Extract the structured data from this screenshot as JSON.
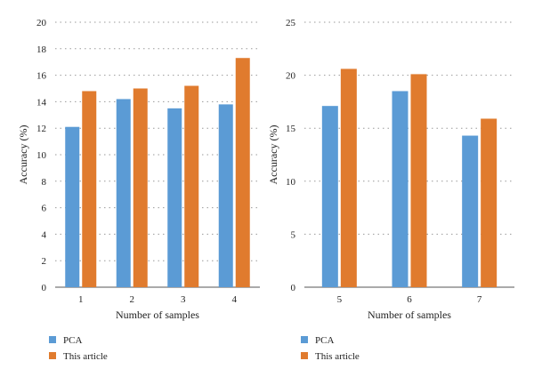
{
  "charts": [
    {
      "type": "bar",
      "categories": [
        "1",
        "2",
        "3",
        "4"
      ],
      "series": [
        {
          "name": "PCA",
          "values": [
            12.1,
            14.2,
            13.5,
            13.8
          ]
        },
        {
          "name": "This article",
          "values": [
            14.8,
            15.0,
            15.2,
            17.3
          ]
        }
      ],
      "ylim": [
        0,
        20
      ],
      "yticks": [
        0,
        2,
        4,
        6,
        8,
        10,
        12,
        14,
        16,
        18,
        20
      ],
      "ytick_labels": [
        "0",
        "2",
        "4",
        "6",
        "8",
        "10",
        "12",
        "14",
        "16",
        "18",
        "20"
      ],
      "ylabel": "Accuracy (%)",
      "xlabel": "Number of samples",
      "grid": "horizontal dotted",
      "legend": "bottom-left",
      "colors": [
        "#5b9bd5",
        "#e07b2e"
      ]
    },
    {
      "type": "bar",
      "categories": [
        "5",
        "6",
        "7"
      ],
      "series": [
        {
          "name": "PCA",
          "values": [
            17.1,
            18.5,
            14.3
          ]
        },
        {
          "name": "This article",
          "values": [
            20.6,
            20.1,
            15.9
          ]
        }
      ],
      "ylim": [
        0,
        25
      ],
      "yticks": [
        0,
        5,
        10,
        15,
        20,
        25
      ],
      "ytick_labels": [
        "0",
        "5",
        "10",
        "15",
        "20",
        "25"
      ],
      "ylabel": "Accuracy (%)",
      "xlabel": "Number of samples",
      "grid": "horizontal dotted",
      "legend": "bottom-left",
      "colors": [
        "#5b9bd5",
        "#e07b2e"
      ]
    }
  ]
}
